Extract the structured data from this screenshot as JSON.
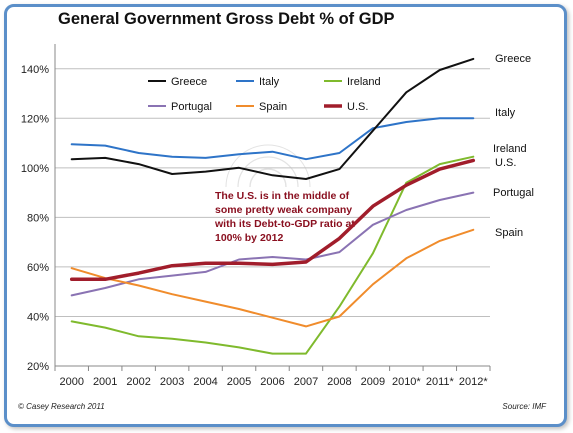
{
  "chart_data": {
    "type": "line",
    "title": "General Government Gross Debt % of GDP",
    "x": [
      "2000",
      "2001",
      "2002",
      "2003",
      "2004",
      "2005",
      "2006",
      "2007",
      "2008",
      "2009",
      "2010*",
      "2011*",
      "2012*"
    ],
    "ylim": [
      20,
      150
    ],
    "yticks": [
      20,
      40,
      60,
      80,
      100,
      120,
      140
    ],
    "ytick_labels": [
      "20%",
      "40%",
      "60%",
      "80%",
      "100%",
      "120%",
      "140%"
    ],
    "grid": "horizontal",
    "legend_position": "top-left",
    "series": [
      {
        "name": "Greece",
        "color": "#111111",
        "width": 2,
        "values": [
          103.5,
          104,
          101.5,
          97.5,
          98.5,
          100,
          97,
          95.5,
          99.5,
          115,
          130.5,
          139.5,
          144
        ]
      },
      {
        "name": "Italy",
        "color": "#2e74c8",
        "width": 2,
        "values": [
          109.5,
          109,
          106,
          104.5,
          104,
          105.5,
          106.5,
          103.5,
          106,
          116,
          118.5,
          120,
          120
        ]
      },
      {
        "name": "Ireland",
        "color": "#7fba2d",
        "width": 2,
        "values": [
          38,
          35.5,
          32,
          31,
          29.5,
          27.5,
          25,
          25,
          44,
          65.5,
          94,
          101.5,
          104.5
        ]
      },
      {
        "name": "Portugal",
        "color": "#8a73b3",
        "width": 2,
        "values": [
          48.5,
          51.5,
          55,
          56.5,
          58,
          63,
          64,
          63,
          66,
          77,
          83,
          87,
          90
        ]
      },
      {
        "name": "Spain",
        "color": "#f08c2c",
        "width": 2,
        "values": [
          59.5,
          55.5,
          52.5,
          49,
          46,
          43,
          39.5,
          36,
          40,
          53,
          63.5,
          70.5,
          75
        ]
      },
      {
        "name": "U.S.",
        "color": "#a11d2b",
        "width": 3.5,
        "values": [
          55,
          55,
          57.5,
          60.5,
          61.5,
          61.5,
          61,
          62,
          71.5,
          84.5,
          93,
          99.5,
          103
        ]
      }
    ],
    "annotation": [
      "The U.S. is in the middle of",
      "some pretty weak company",
      "with its Debt-to-GDP ratio at",
      "100% by 2012"
    ],
    "credit_left": "© Casey Research 2011",
    "credit_right": "Source: IMF"
  }
}
